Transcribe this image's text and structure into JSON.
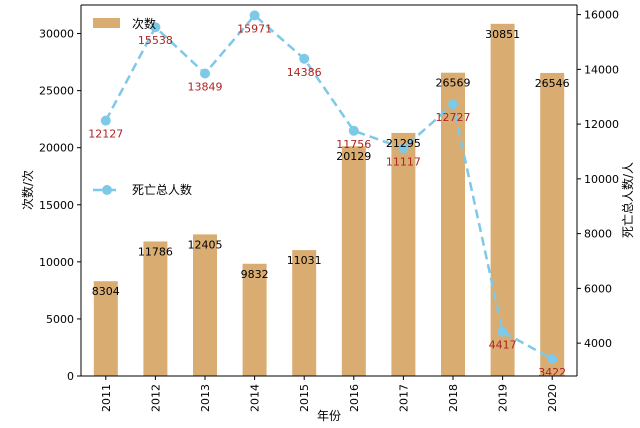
{
  "chart_data": {
    "type": "bar",
    "categories": [
      "2011",
      "2012",
      "2013",
      "2014",
      "2015",
      "2016",
      "2017",
      "2018",
      "2019",
      "2020"
    ],
    "series": [
      {
        "name": "次数",
        "type": "bar",
        "axis": "left",
        "color": "#d9ad72",
        "values": [
          8304,
          11786,
          12405,
          9832,
          11031,
          20129,
          21295,
          26569,
          30851,
          26546
        ]
      },
      {
        "name": "死亡总人数",
        "type": "line",
        "axis": "right",
        "color": "#7ec8e8",
        "line_style": "dashed",
        "marker": "circle",
        "values": [
          12127,
          15538,
          13849,
          15971,
          14386,
          11756,
          11117,
          12727,
          4417,
          3422
        ]
      }
    ],
    "xlabel": "年份",
    "ylabel": "次数/次",
    "y2label": "死亡总人数/人",
    "ylim": [
      0,
      32500
    ],
    "y2lim": [
      2800,
      16350
    ],
    "y_ticks": [
      "0",
      "5000",
      "10000",
      "15000",
      "20000",
      "25000",
      "30000"
    ],
    "y2_ticks": [
      "4000",
      "6000",
      "8000",
      "10000",
      "12000",
      "14000",
      "16000"
    ],
    "grid": false,
    "legend": "left"
  }
}
